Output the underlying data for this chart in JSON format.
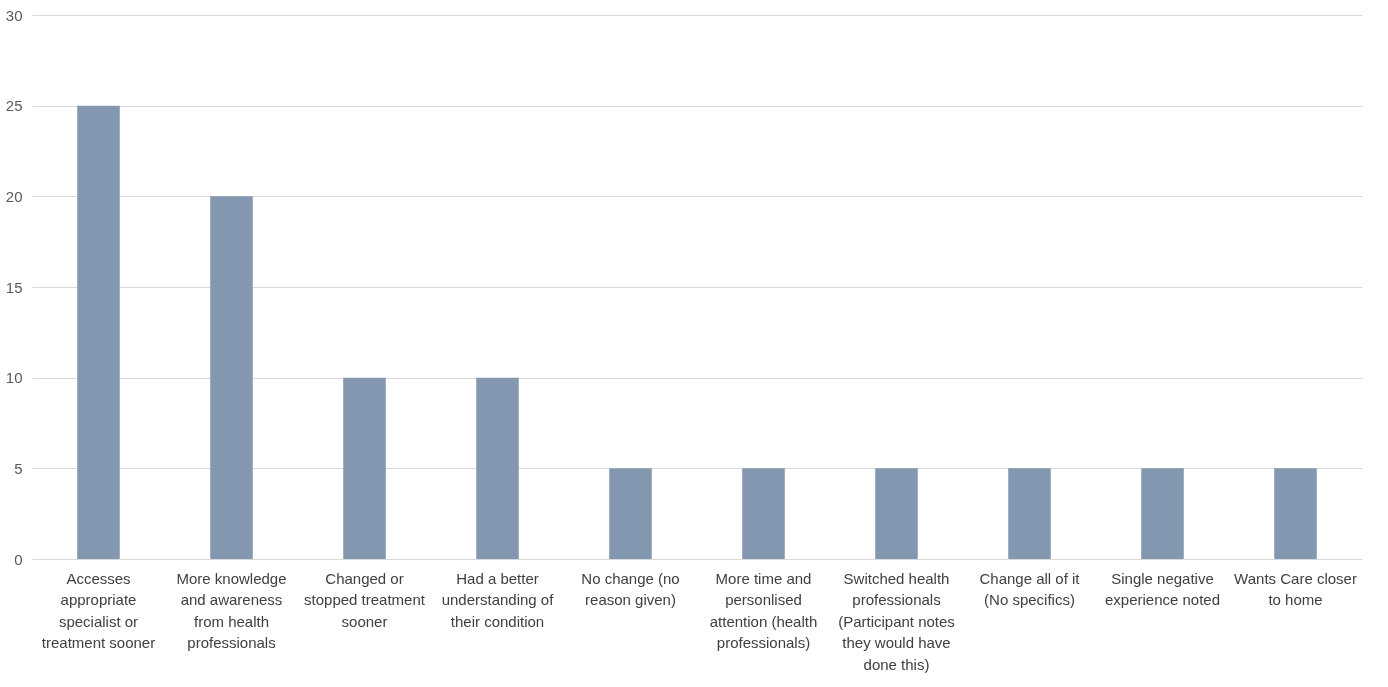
{
  "chart_data": {
    "type": "bar",
    "categories": [
      "Accesses appropriate specialist or treatment sooner",
      "More knowledge and awareness from health professionals",
      "Changed or stopped treatment sooner",
      "Had a better understanding of their condition",
      "No change (no reason given)",
      "More time and personlised attention (health professionals)",
      "Switched health professionals (Participant notes they would have done this)",
      "Change all of it (No specifics)",
      "Single negative experience noted",
      "Wants Care closer to home"
    ],
    "values": [
      25,
      20,
      10,
      10,
      5,
      5,
      5,
      5,
      5,
      5
    ],
    "color": "#8497b0",
    "ylim": [
      0,
      30
    ],
    "yticks": [
      0,
      5,
      10,
      15,
      20,
      25,
      30
    ],
    "grid": "y"
  }
}
